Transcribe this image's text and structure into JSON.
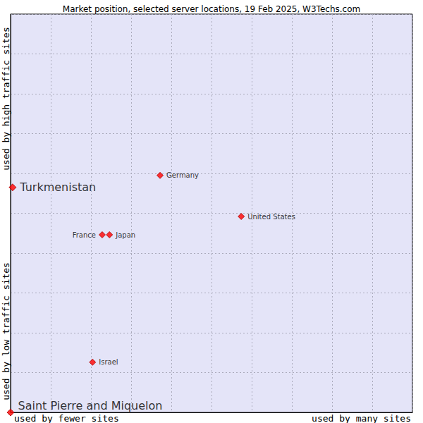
{
  "chart_data": {
    "type": "scatter",
    "title": "Market position, selected server locations, 19 Feb 2025, W3Techs.com",
    "xlabel": [
      "used by fewer sites",
      "used by many sites"
    ],
    "ylabel": [
      "used by low traffic sites",
      "used by high traffic sites"
    ],
    "xlim": [
      0,
      100
    ],
    "ylim": [
      0,
      100
    ],
    "xticks": [
      0,
      10,
      20,
      30,
      40,
      50,
      60,
      70,
      80,
      90,
      100
    ],
    "yticks": [
      0,
      10,
      20,
      30,
      40,
      50,
      60,
      70,
      80,
      90,
      100
    ],
    "grid": true,
    "tick_labels": false,
    "marker": "diamond",
    "color": "#ff0000",
    "series": [
      {
        "labels": [
          "Turkmenistan",
          "Saint Pierre and Miquelon"
        ],
        "x": [
          0.5,
          0
        ],
        "y": [
          56.5,
          0
        ]
      },
      {
        "labels": [
          "Germany",
          "United States",
          "France",
          "Japan",
          "Israel"
        ],
        "x": [
          37.2,
          57.4,
          22.8,
          24.6,
          20.4
        ],
        "y": [
          59.5,
          49.2,
          44.6,
          44.6,
          12.6
        ]
      }
    ]
  }
}
